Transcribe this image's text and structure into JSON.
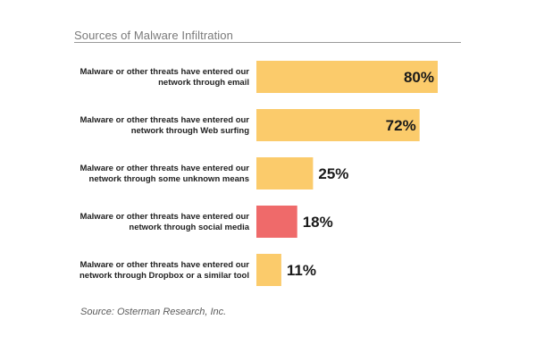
{
  "chart_data": {
    "type": "bar",
    "orientation": "horizontal",
    "title": "Sources of Malware Infiltration",
    "categories": [
      "Malware or other threats have entered our network through email",
      "Malware or other threats have entered our network through Web surfing",
      "Malware or other threats have entered our network through some unknown means",
      "Malware or other threats have entered our network through social media",
      "Malware or other threats have entered our network through Dropbox or a similar tool"
    ],
    "category_lines": [
      [
        "Malware or other threats have entered our",
        "network through email"
      ],
      [
        "Malware or other threats have entered our",
        "network through Web surfing"
      ],
      [
        "Malware or other threats have entered our",
        "network through some unknown means"
      ],
      [
        "Malware or other threats have entered our",
        "network through social media"
      ],
      [
        "Malware or other threats have entered our",
        "network through Dropbox or a similar tool"
      ]
    ],
    "values": [
      80,
      72,
      25,
      18,
      11
    ],
    "value_labels": [
      "80%",
      "72%",
      "25%",
      "18%",
      "11%"
    ],
    "bar_colors": [
      "#fbcb6b",
      "#fbcb6b",
      "#fbcb6b",
      "#ef6a6a",
      "#fbcb6b"
    ],
    "xlim": [
      0,
      80
    ],
    "grid": false,
    "legend": false,
    "source": "Source: Osterman Research, Inc."
  }
}
